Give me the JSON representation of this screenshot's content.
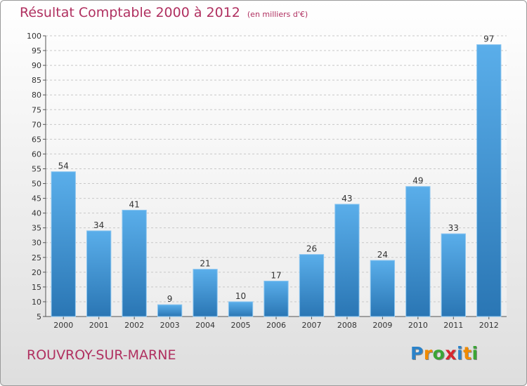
{
  "title": {
    "main": "Résultat Comptable 2000 à 2012",
    "unit": "(en milliers d'€)"
  },
  "commune": "ROUVROY-SUR-MARNE",
  "logo": {
    "letters": [
      "P",
      "r",
      "o",
      "x",
      "i",
      "t",
      "i"
    ],
    "colors": [
      "#2b82c9",
      "#f08a00",
      "#3aa535",
      "#d8262e",
      "#2b82c9",
      "#f08a00",
      "#3aa535"
    ]
  },
  "chart_data": {
    "type": "bar",
    "title": "Résultat Comptable 2000 à 2012",
    "xlabel": "",
    "ylabel": "",
    "categories": [
      "2000",
      "2001",
      "2002",
      "2003",
      "2004",
      "2005",
      "2006",
      "2007",
      "2008",
      "2009",
      "2010",
      "2011",
      "2012"
    ],
    "values": [
      54,
      34,
      41,
      9,
      21,
      10,
      17,
      26,
      43,
      24,
      49,
      33,
      97
    ],
    "ylim": [
      5,
      100
    ],
    "yticks": [
      5,
      10,
      15,
      20,
      25,
      30,
      35,
      40,
      45,
      50,
      55,
      60,
      65,
      70,
      75,
      80,
      85,
      90,
      95,
      100
    ],
    "grid": true,
    "bar_color": "#4a9fe0"
  }
}
